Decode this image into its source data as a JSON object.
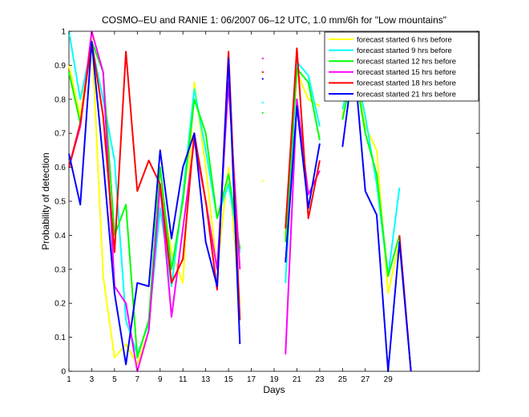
{
  "chart_data": {
    "type": "line",
    "title": "COSMO–EU and RANIE 1: 06/2007 06–12 UTC, 1.0 mm/6h for \"Low mountains\"",
    "xlabel": "Days",
    "ylabel": "Probability of detection",
    "xlim": [
      1,
      37
    ],
    "ylim": [
      0,
      1
    ],
    "xticks": [
      1,
      3,
      5,
      7,
      9,
      11,
      13,
      15,
      17,
      19,
      21,
      23,
      25,
      27,
      29
    ],
    "yticks": [
      0,
      0.1,
      0.2,
      0.3,
      0.4,
      0.5,
      0.6,
      0.7,
      0.8,
      0.9,
      1
    ],
    "ytick_labels": [
      "0",
      "0.1",
      "0.2",
      "0.3",
      "0.4",
      "0.5",
      "0.6",
      "0.7",
      "0.8",
      "0.9",
      "1"
    ],
    "legend_position": "top-right",
    "x": [
      1,
      2,
      3,
      4,
      5,
      6,
      7,
      8,
      9,
      10,
      11,
      12,
      13,
      14,
      15,
      16,
      17,
      18,
      19,
      20,
      21,
      22,
      23,
      24,
      25,
      26,
      27,
      28,
      29,
      30,
      31
    ],
    "series": [
      {
        "name": "forecast started 6 hrs before",
        "color": "#ffff00",
        "values": [
          0.9,
          0.75,
          0.99,
          0.28,
          0.04,
          0.08,
          0.02,
          0.12,
          0.55,
          0.35,
          0.26,
          0.85,
          0.6,
          0.3,
          0.6,
          0.2,
          null,
          0.56,
          null,
          0.4,
          0.88,
          0.8,
          0.78,
          null,
          0.75,
          0.9,
          0.72,
          0.65,
          0.23,
          0.38,
          null
        ]
      },
      {
        "name": "forecast started 9 hrs before",
        "color": "#00ffff",
        "values": [
          1.0,
          0.8,
          0.96,
          0.8,
          0.62,
          0.15,
          0.05,
          0.14,
          0.48,
          0.25,
          0.52,
          0.83,
          0.65,
          0.45,
          0.55,
          0.35,
          null,
          0.79,
          null,
          0.26,
          0.91,
          0.87,
          0.72,
          null,
          0.77,
          0.91,
          0.75,
          0.55,
          0.28,
          0.54,
          null
        ]
      },
      {
        "name": "forecast started 12 hrs before",
        "color": "#00ff00",
        "values": [
          0.88,
          0.73,
          0.97,
          0.88,
          0.4,
          0.49,
          0.04,
          0.15,
          0.6,
          0.3,
          0.5,
          0.8,
          0.7,
          0.45,
          0.58,
          0.36,
          null,
          0.76,
          null,
          0.38,
          0.89,
          0.85,
          0.68,
          null,
          0.74,
          0.9,
          0.7,
          0.58,
          0.28,
          0.4,
          null
        ]
      },
      {
        "name": "forecast started 15 hrs before",
        "color": "#ff00ff",
        "values": [
          0.6,
          0.72,
          1.0,
          0.88,
          0.25,
          0.2,
          0.0,
          0.12,
          0.55,
          0.16,
          0.42,
          0.68,
          0.5,
          0.3,
          0.85,
          0.3,
          null,
          0.92,
          null,
          0.05,
          0.8,
          0.52,
          0.59,
          null,
          null,
          null,
          null,
          null,
          null,
          null,
          null
        ]
      },
      {
        "name": "forecast started 18 hrs before",
        "color": "#ff0000",
        "values": [
          0.6,
          0.73,
          0.97,
          0.75,
          0.35,
          0.94,
          0.53,
          0.62,
          0.55,
          0.26,
          0.33,
          0.7,
          0.5,
          0.24,
          0.94,
          0.15,
          null,
          0.88,
          null,
          0.42,
          0.95,
          0.45,
          0.62,
          null,
          null,
          null,
          null,
          null,
          null,
          0.4,
          0.0
        ]
      },
      {
        "name": "forecast started 21 hrs before",
        "color": "#0000ff",
        "values": [
          0.64,
          0.49,
          0.97,
          0.62,
          0.23,
          0.02,
          0.26,
          0.25,
          0.65,
          0.39,
          0.6,
          0.7,
          0.38,
          0.25,
          0.92,
          0.08,
          null,
          0.86,
          null,
          0.32,
          0.78,
          0.48,
          0.67,
          null,
          0.66,
          0.92,
          0.53,
          0.46,
          0.0,
          0.38,
          0.0
        ]
      }
    ]
  }
}
